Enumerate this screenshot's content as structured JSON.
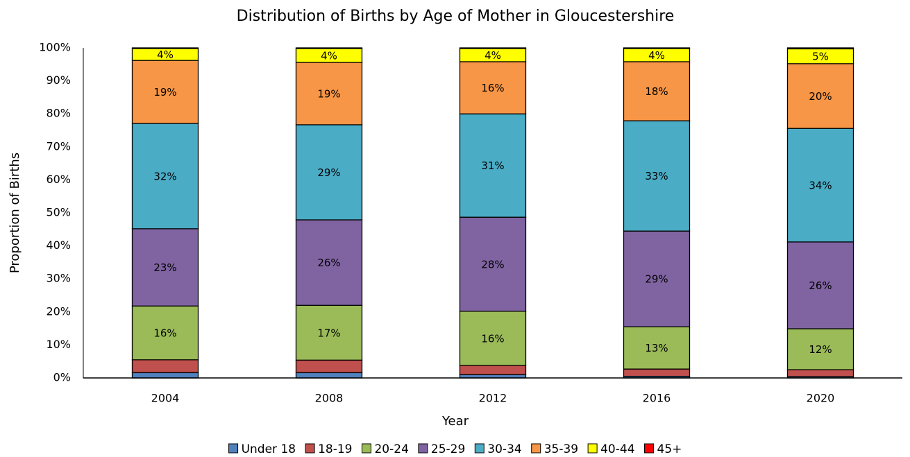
{
  "chart_data": {
    "type": "stacked_bar",
    "title": "Distribution of Births by Age of Mother in Gloucestershire",
    "xlabel": "Year",
    "ylabel": "Proportion of Births",
    "categories": [
      "2004",
      "2008",
      "2012",
      "2016",
      "2020"
    ],
    "ylim": [
      0,
      100
    ],
    "yticks": [
      {
        "value": 0,
        "label": "0%"
      },
      {
        "value": 10,
        "label": "10%"
      },
      {
        "value": 20,
        "label": "20%"
      },
      {
        "value": 30,
        "label": "30%"
      },
      {
        "value": 40,
        "label": "40%"
      },
      {
        "value": 50,
        "label": "50%"
      },
      {
        "value": 60,
        "label": "60%"
      },
      {
        "value": 70,
        "label": "70%"
      },
      {
        "value": 80,
        "label": "80%"
      },
      {
        "value": 90,
        "label": "90%"
      },
      {
        "value": 100,
        "label": "100%"
      }
    ],
    "grid": false,
    "legend": "bottom",
    "series": [
      {
        "name": "Under 18",
        "color": "#4f81bd",
        "values": [
          1.6,
          1.6,
          1.0,
          0.5,
          0.4
        ]
      },
      {
        "name": "18-19",
        "color": "#c0504d",
        "values": [
          3.9,
          3.8,
          2.8,
          2.2,
          2.1
        ]
      },
      {
        "name": "20-24",
        "color": "#9bbb59",
        "values": [
          16.3,
          16.6,
          16.4,
          12.8,
          12.4
        ],
        "value_labels": [
          "16%",
          "17%",
          "16%",
          "13%",
          "12%"
        ]
      },
      {
        "name": "25-29",
        "color": "#8064a2",
        "values": [
          23.4,
          25.9,
          28.5,
          29.0,
          26.3
        ],
        "value_labels": [
          "23%",
          "26%",
          "28%",
          "29%",
          "26%"
        ]
      },
      {
        "name": "30-34",
        "color": "#4bacc6",
        "values": [
          31.9,
          28.8,
          31.3,
          33.4,
          34.4
        ],
        "value_labels": [
          "32%",
          "29%",
          "31%",
          "33%",
          "34%"
        ]
      },
      {
        "name": "35-39",
        "color": "#f79646",
        "values": [
          19.1,
          18.9,
          15.8,
          17.9,
          19.6
        ],
        "value_labels": [
          "19%",
          "19%",
          "16%",
          "18%",
          "20%"
        ]
      },
      {
        "name": "40-44",
        "color": "#ffff00",
        "values": [
          3.6,
          4.2,
          4.0,
          4.0,
          4.5
        ],
        "value_labels": [
          "4%",
          "4%",
          "4%",
          "4%",
          "5%"
        ]
      },
      {
        "name": "45+",
        "color": "#ff0000",
        "values": [
          0.2,
          0.2,
          0.2,
          0.2,
          0.3
        ]
      }
    ]
  }
}
